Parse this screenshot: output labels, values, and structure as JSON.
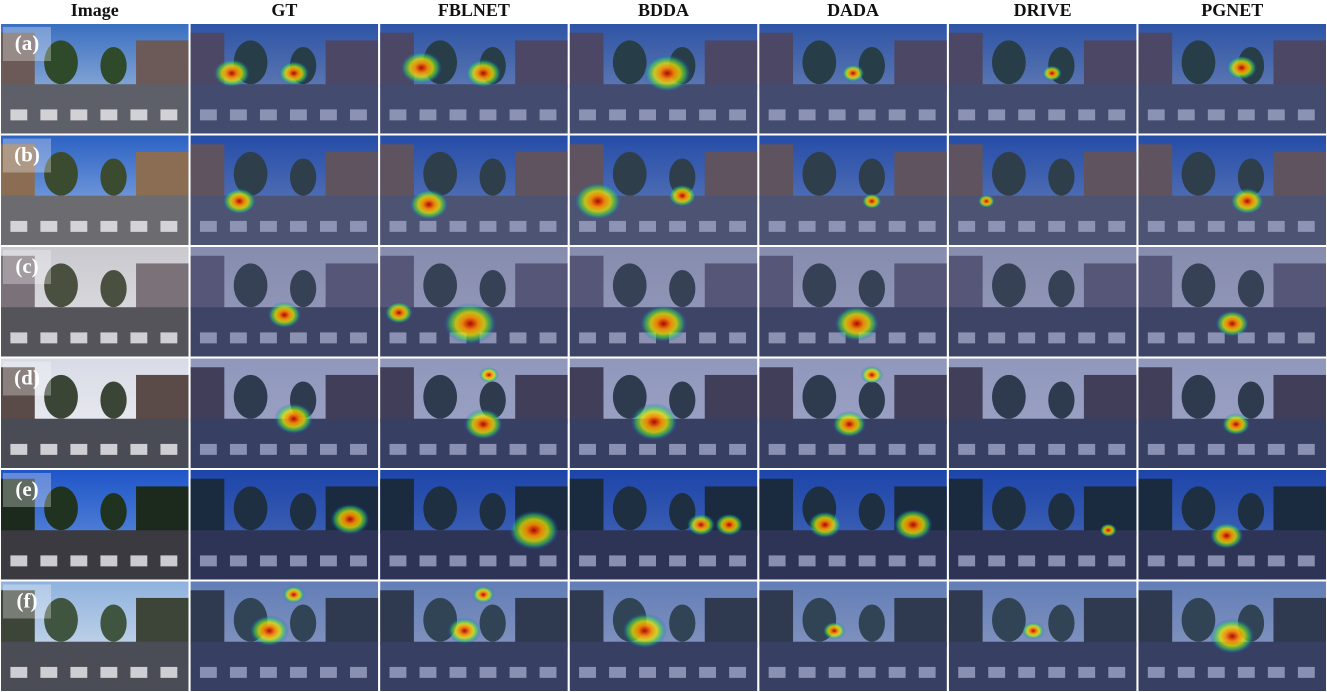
{
  "columns": [
    "Image",
    "GT",
    "FBLNET",
    "BDDA",
    "DADA",
    "DRIVE",
    "PGNET"
  ],
  "row_labels": [
    "(a)",
    "(b)",
    "(c)",
    "(d)",
    "(e)",
    "(f)"
  ]
}
